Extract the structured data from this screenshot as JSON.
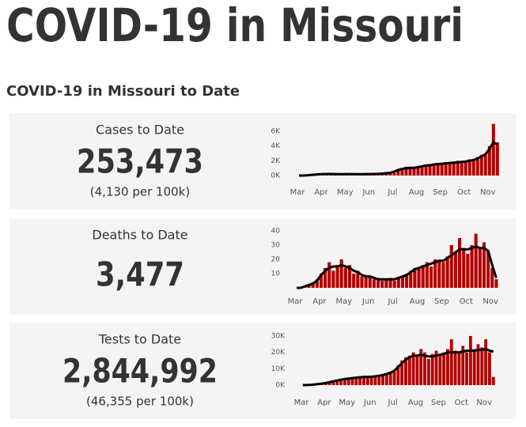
{
  "title": "COVID-19 in Missouri",
  "subtitle": "COVID-19 in Missouri to Date",
  "chart_data": [
    {
      "type": "bar",
      "stat_label": "Cases to Date",
      "stat_value": "253,473",
      "stat_note": "(4,130 per 100k)",
      "categories": [
        "Mar",
        "Apr",
        "May",
        "Jun",
        "Jul",
        "Aug",
        "Sep",
        "Oct",
        "Nov"
      ],
      "ylim": [
        0,
        7000
      ],
      "yticks": [
        {
          "value": 0,
          "label": "0K"
        },
        {
          "value": 2000,
          "label": "2K"
        },
        {
          "value": 4000,
          "label": "4K"
        },
        {
          "value": 6000,
          "label": "6K"
        }
      ],
      "series": [
        {
          "type": "bar",
          "color": "#b30000",
          "values": [
            [
              0,
              0,
              50,
              100,
              150,
              200
            ],
            [
              200,
              250,
              200,
              200,
              150,
              200
            ],
            [
              200,
              200,
              200,
              150,
              200,
              200
            ],
            [
              200,
              200,
              250,
              300,
              350,
              400
            ],
            [
              600,
              800,
              1000,
              1200,
              1000,
              1100
            ],
            [
              1200,
              1300,
              1500,
              1400,
              1600,
              1700
            ],
            [
              1500,
              1800,
              1600,
              1900,
              2000,
              1800
            ],
            [
              1900,
              2200,
              2000,
              2500,
              2800,
              3000
            ],
            [
              4000,
              7000,
              4500
            ]
          ]
        },
        {
          "type": "line",
          "color": "#000000",
          "values": [
            [
              0,
              0,
              30,
              80,
              120,
              170
            ],
            [
              200,
              210,
              210,
              200,
              190,
              190
            ],
            [
              200,
              200,
              190,
              190,
              190,
              200
            ],
            [
              200,
              210,
              230,
              270,
              320,
              380
            ],
            [
              550,
              750,
              900,
              1000,
              1050,
              1050
            ],
            [
              1150,
              1250,
              1350,
              1400,
              1500,
              1550
            ],
            [
              1600,
              1650,
              1700,
              1750,
              1800,
              1850
            ],
            [
              1900,
              2000,
              2100,
              2300,
              2600,
              2900
            ],
            [
              3600,
              4500,
              4200
            ]
          ]
        }
      ]
    },
    {
      "type": "bar",
      "stat_label": "Deaths to Date",
      "stat_value": "3,477",
      "categories": [
        "Mar",
        "Apr",
        "May",
        "Jun",
        "Jul",
        "Aug",
        "Sep",
        "Oct",
        "Nov"
      ],
      "ylim": [
        0,
        42
      ],
      "yticks": [
        10,
        20,
        30,
        40
      ],
      "series": [
        {
          "type": "bar",
          "color": "#b30000",
          "values": [
            [
              0,
              0,
              1,
              2,
              4,
              6
            ],
            [
              10,
              14,
              18,
              12,
              16,
              20
            ],
            [
              14,
              16,
              10,
              12,
              8,
              9
            ],
            [
              8,
              6,
              7,
              5,
              6,
              7
            ],
            [
              5,
              7,
              8,
              10,
              12,
              14
            ],
            [
              14,
              16,
              18,
              15,
              20,
              19
            ],
            [
              18,
              22,
              30,
              25,
              35,
              28
            ],
            [
              24,
              30,
              38,
              28,
              32,
              26
            ],
            [
              14,
              6
            ]
          ]
        },
        {
          "type": "line",
          "color": "#000000",
          "values": [
            [
              0,
              0,
              1,
              2,
              3,
              5
            ],
            [
              9,
              12,
              14,
              15,
              15,
              16
            ],
            [
              15,
              14,
              12,
              11,
              9,
              8
            ],
            [
              8,
              7,
              6,
              6,
              6,
              6
            ],
            [
              6,
              7,
              8,
              9,
              11,
              13
            ],
            [
              14,
              15,
              16,
              17,
              18,
              19
            ],
            [
              19,
              21,
              23,
              25,
              27,
              27
            ],
            [
              27,
              28,
              29,
              28,
              28,
              26
            ],
            [
              16,
              7
            ]
          ]
        }
      ]
    },
    {
      "type": "bar",
      "stat_label": "Tests to Date",
      "stat_value": "2,844,992",
      "stat_note": "(46,355 per 100k)",
      "categories": [
        "Mar",
        "Apr",
        "May",
        "Jun",
        "Jul",
        "Aug",
        "Sep",
        "Oct",
        "Nov"
      ],
      "ylim": [
        0,
        32000
      ],
      "yticks": [
        {
          "value": 0,
          "label": "0K"
        },
        {
          "value": 10000,
          "label": "10K"
        },
        {
          "value": 20000,
          "label": "20K"
        },
        {
          "value": 30000,
          "label": "30K"
        }
      ],
      "series": [
        {
          "type": "bar",
          "color": "#b30000",
          "values": [
            [
              0,
              50,
              200,
              500,
              700,
              1000
            ],
            [
              1500,
              2000,
              2500,
              3000,
              3500,
              4000
            ],
            [
              4000,
              4500,
              5000,
              5000,
              5500,
              5000
            ],
            [
              5000,
              5500,
              6000,
              6500,
              7000,
              8000
            ],
            [
              9000,
              12000,
              15000,
              17000,
              18000,
              20000
            ],
            [
              18000,
              22000,
              20000,
              16000,
              19000,
              21000
            ],
            [
              19000,
              20000,
              22000,
              28000,
              21000,
              20000
            ],
            [
              24000,
              20000,
              30000,
              22000,
              25000,
              23000
            ],
            [
              28000,
              20000,
              5000
            ]
          ]
        },
        {
          "type": "line",
          "color": "#000000",
          "values": [
            [
              0,
              30,
              150,
              400,
              650,
              900
            ],
            [
              1300,
              1800,
              2300,
              2800,
              3300,
              3700
            ],
            [
              4000,
              4300,
              4600,
              4800,
              5000,
              5000
            ],
            [
              5100,
              5300,
              5700,
              6200,
              6800,
              7600
            ],
            [
              8800,
              11000,
              13500,
              15500,
              17000,
              18000
            ],
            [
              18000,
              18500,
              18000,
              17500,
              17500,
              18000
            ],
            [
              18500,
              19000,
              20000,
              20000,
              20000,
              20000
            ],
            [
              20500,
              21000,
              21000,
              21000,
              21500,
              21500
            ],
            [
              22000,
              21000,
              20500
            ]
          ]
        }
      ]
    }
  ]
}
